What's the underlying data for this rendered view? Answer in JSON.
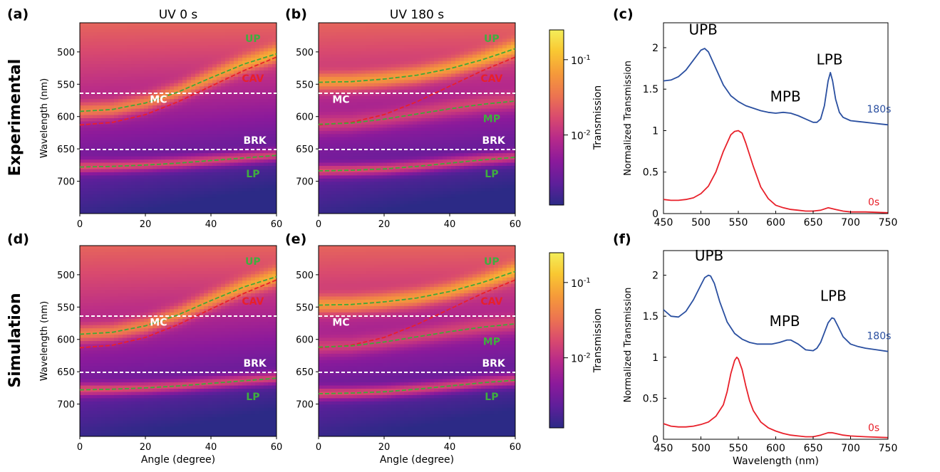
{
  "colors": {
    "ridge_green": "#3fa83a",
    "cavity_red": "#e8202a",
    "level_white": "#ffffff",
    "label_green": "#3fae3f",
    "label_red": "#e8202a",
    "label_white": "#ffffff",
    "line_180s": "#2a4fa0",
    "line_0s": "#e8202a",
    "colormap": [
      "#2c2a86",
      "#5d1f9a",
      "#8b1a9b",
      "#b72a8a",
      "#d94a6e",
      "#ec7351",
      "#f59a3a",
      "#f9c832",
      "#f4ee5a"
    ]
  },
  "row_labels": {
    "top": "Experimental",
    "bottom": "Simulation"
  },
  "column_titles": {
    "a": "UV 0 s",
    "b": "UV 180 s"
  },
  "panel_letters": {
    "a": "(a)",
    "b": "(b)",
    "c": "(c)",
    "d": "(d)",
    "e": "(e)",
    "f": "(f)"
  },
  "colorbar": {
    "label": "Transmission",
    "ticks": [
      "10-1",
      "10-2"
    ],
    "scale": "log"
  },
  "chart_data": [
    {
      "id": "a",
      "type": "heatmap",
      "title": "UV 0 s",
      "xlabel": "",
      "ylabel": "Wavelength (nm)",
      "xlim": [
        0,
        60
      ],
      "ylim": [
        750,
        455
      ],
      "x_ticks": [
        "0",
        "20",
        "40",
        "60"
      ],
      "y_ticks": [
        "500",
        "550",
        "600",
        "650",
        "700"
      ],
      "horizontal_lines": [
        {
          "label": "MC",
          "y": 564
        },
        {
          "label": "BRK",
          "y": 651
        }
      ],
      "curves": [
        {
          "label": "UP",
          "color": "ridge_green",
          "x": [
            0,
            10,
            20,
            30,
            40,
            50,
            60
          ],
          "y": [
            592,
            589,
            579,
            562,
            540,
            519,
            503
          ]
        },
        {
          "label": "CAV",
          "color": "cavity_red",
          "x": [
            0,
            10,
            20,
            30,
            40,
            50,
            60
          ],
          "y": [
            613,
            609,
            597,
            577,
            553,
            529,
            508
          ]
        },
        {
          "label": "LP",
          "color": "ridge_green",
          "x": [
            0,
            10,
            20,
            30,
            40,
            50,
            60
          ],
          "y": [
            678,
            677,
            675,
            672,
            668,
            664,
            660
          ]
        }
      ]
    },
    {
      "id": "b",
      "type": "heatmap",
      "title": "UV 180 s",
      "xlabel": "",
      "ylabel": "",
      "xlim": [
        0,
        60
      ],
      "ylim": [
        750,
        455
      ],
      "x_ticks": [
        "0",
        "20",
        "40",
        "60"
      ],
      "y_ticks": [
        "500",
        "550",
        "600",
        "650",
        "700"
      ],
      "horizontal_lines": [
        {
          "label": "MC",
          "y": 564
        },
        {
          "label": "BRK",
          "y": 651
        }
      ],
      "curves": [
        {
          "label": "UP",
          "color": "ridge_green",
          "x": [
            0,
            10,
            20,
            30,
            40,
            50,
            60
          ],
          "y": [
            547,
            546,
            542,
            536,
            526,
            512,
            495
          ]
        },
        {
          "label": "CAV",
          "color": "cavity_red",
          "x": [
            0,
            10,
            20,
            30,
            40,
            50,
            60
          ],
          "y": [
            613,
            609,
            597,
            577,
            553,
            529,
            508
          ]
        },
        {
          "label": "MP",
          "color": "ridge_green",
          "x": [
            0,
            10,
            20,
            30,
            40,
            50,
            60
          ],
          "y": [
            612,
            610,
            604,
            596,
            588,
            581,
            576
          ]
        },
        {
          "label": "LP",
          "color": "ridge_green",
          "x": [
            0,
            10,
            20,
            30,
            40,
            50,
            60
          ],
          "y": [
            684,
            683,
            681,
            677,
            672,
            667,
            663
          ]
        }
      ]
    },
    {
      "id": "c",
      "type": "line",
      "xlabel": "",
      "ylabel": "Normalized Transmission",
      "xlim": [
        450,
        750
      ],
      "ylim": [
        0,
        2.3
      ],
      "x_ticks": [
        "450",
        "500",
        "550",
        "600",
        "650",
        "700",
        "750"
      ],
      "y_ticks": [
        "0",
        "0.5",
        "1",
        "1.5",
        "2"
      ],
      "series": [
        {
          "name": "180s",
          "color": "line_180s",
          "x": [
            450,
            460,
            470,
            480,
            490,
            500,
            505,
            510,
            520,
            530,
            540,
            550,
            560,
            570,
            580,
            590,
            600,
            610,
            620,
            630,
            640,
            650,
            655,
            660,
            665,
            670,
            673,
            676,
            680,
            685,
            690,
            700,
            710,
            720,
            730,
            740,
            750
          ],
          "y": [
            1.6,
            1.61,
            1.65,
            1.73,
            1.85,
            1.97,
            1.99,
            1.95,
            1.75,
            1.55,
            1.42,
            1.35,
            1.3,
            1.27,
            1.24,
            1.22,
            1.21,
            1.22,
            1.21,
            1.18,
            1.14,
            1.1,
            1.1,
            1.14,
            1.3,
            1.6,
            1.7,
            1.6,
            1.38,
            1.22,
            1.16,
            1.12,
            1.11,
            1.1,
            1.09,
            1.08,
            1.07
          ]
        },
        {
          "name": "0s",
          "color": "line_0s",
          "x": [
            450,
            460,
            470,
            480,
            490,
            500,
            510,
            520,
            530,
            540,
            545,
            550,
            555,
            560,
            570,
            580,
            590,
            600,
            610,
            620,
            630,
            640,
            650,
            660,
            670,
            675,
            680,
            690,
            700,
            720,
            750
          ],
          "y": [
            0.17,
            0.16,
            0.16,
            0.17,
            0.19,
            0.24,
            0.33,
            0.5,
            0.75,
            0.95,
            0.99,
            1.0,
            0.97,
            0.85,
            0.57,
            0.32,
            0.18,
            0.1,
            0.07,
            0.05,
            0.04,
            0.03,
            0.03,
            0.04,
            0.07,
            0.06,
            0.05,
            0.03,
            0.02,
            0.02,
            0.01
          ]
        }
      ],
      "annotations": [
        {
          "text": "UPB",
          "x": 503,
          "y": 2.16
        },
        {
          "text": "MPB",
          "x": 613,
          "y": 1.35
        },
        {
          "text": "LPB",
          "x": 672,
          "y": 1.8
        },
        {
          "text": "180s",
          "x": 738,
          "y": 1.22
        },
        {
          "text": "0s",
          "x": 731,
          "y": 0.1
        }
      ]
    },
    {
      "id": "d",
      "type": "heatmap",
      "xlabel": "Angle (degree)",
      "ylabel": "Wavelength (nm)",
      "xlim": [
        0,
        60
      ],
      "ylim": [
        750,
        455
      ],
      "x_ticks": [
        "0",
        "20",
        "40",
        "60"
      ],
      "y_ticks": [
        "500",
        "550",
        "600",
        "650",
        "700"
      ],
      "horizontal_lines": [
        {
          "label": "MC",
          "y": 564
        },
        {
          "label": "BRK",
          "y": 651
        }
      ],
      "curves": [
        {
          "label": "UP",
          "color": "ridge_green",
          "x": [
            0,
            10,
            20,
            30,
            40,
            50,
            60
          ],
          "y": [
            592,
            589,
            579,
            562,
            540,
            519,
            503
          ]
        },
        {
          "label": "CAV",
          "color": "cavity_red",
          "x": [
            0,
            10,
            20,
            30,
            40,
            50,
            60
          ],
          "y": [
            613,
            609,
            597,
            577,
            553,
            529,
            508
          ]
        },
        {
          "label": "LP",
          "color": "ridge_green",
          "x": [
            0,
            10,
            20,
            30,
            40,
            50,
            60
          ],
          "y": [
            678,
            677,
            675,
            672,
            668,
            664,
            660
          ]
        }
      ]
    },
    {
      "id": "e",
      "type": "heatmap",
      "xlabel": "Angle (degree)",
      "ylabel": "",
      "xlim": [
        0,
        60
      ],
      "ylim": [
        750,
        455
      ],
      "x_ticks": [
        "0",
        "20",
        "40",
        "60"
      ],
      "y_ticks": [
        "500",
        "550",
        "600",
        "650",
        "700"
      ],
      "horizontal_lines": [
        {
          "label": "MC",
          "y": 564
        },
        {
          "label": "BRK",
          "y": 651
        }
      ],
      "curves": [
        {
          "label": "UP",
          "color": "ridge_green",
          "x": [
            0,
            10,
            20,
            30,
            40,
            50,
            60
          ],
          "y": [
            547,
            546,
            542,
            536,
            526,
            512,
            495
          ]
        },
        {
          "label": "CAV",
          "color": "cavity_red",
          "x": [
            0,
            10,
            20,
            30,
            40,
            50,
            60
          ],
          "y": [
            613,
            609,
            597,
            577,
            553,
            529,
            508
          ]
        },
        {
          "label": "MP",
          "color": "ridge_green",
          "x": [
            0,
            10,
            20,
            30,
            40,
            50,
            60
          ],
          "y": [
            612,
            610,
            604,
            596,
            588,
            581,
            576
          ]
        },
        {
          "label": "LP",
          "color": "ridge_green",
          "x": [
            0,
            10,
            20,
            30,
            40,
            50,
            60
          ],
          "y": [
            684,
            683,
            681,
            677,
            672,
            667,
            663
          ]
        }
      ]
    },
    {
      "id": "f",
      "type": "line",
      "xlabel": "Wavelength (nm)",
      "ylabel": "Normalized Transmission",
      "xlim": [
        450,
        750
      ],
      "ylim": [
        0,
        2.3
      ],
      "x_ticks": [
        "450",
        "500",
        "550",
        "600",
        "650",
        "700",
        "750"
      ],
      "y_ticks": [
        "0",
        "0.5",
        "1",
        "1.5",
        "2"
      ],
      "series": [
        {
          "name": "180s",
          "color": "line_180s",
          "x": [
            450,
            460,
            470,
            480,
            490,
            500,
            505,
            510,
            513,
            518,
            525,
            535,
            545,
            555,
            565,
            575,
            585,
            595,
            605,
            615,
            620,
            630,
            640,
            650,
            655,
            660,
            665,
            670,
            675,
            678,
            683,
            690,
            700,
            710,
            720,
            735,
            750
          ],
          "y": [
            1.58,
            1.5,
            1.49,
            1.56,
            1.7,
            1.88,
            1.97,
            2.0,
            1.99,
            1.9,
            1.68,
            1.43,
            1.29,
            1.22,
            1.18,
            1.16,
            1.16,
            1.16,
            1.18,
            1.21,
            1.21,
            1.16,
            1.09,
            1.08,
            1.11,
            1.18,
            1.3,
            1.42,
            1.48,
            1.47,
            1.38,
            1.25,
            1.16,
            1.13,
            1.11,
            1.09,
            1.07
          ]
        },
        {
          "name": "0s",
          "color": "line_0s",
          "x": [
            450,
            460,
            470,
            480,
            490,
            500,
            510,
            520,
            530,
            535,
            540,
            545,
            548,
            550,
            555,
            560,
            565,
            570,
            580,
            590,
            600,
            610,
            620,
            630,
            640,
            650,
            660,
            670,
            675,
            680,
            690,
            700,
            720,
            750
          ],
          "y": [
            0.19,
            0.16,
            0.15,
            0.15,
            0.16,
            0.18,
            0.21,
            0.28,
            0.42,
            0.58,
            0.8,
            0.96,
            1.0,
            0.98,
            0.85,
            0.65,
            0.47,
            0.35,
            0.21,
            0.14,
            0.1,
            0.07,
            0.05,
            0.04,
            0.03,
            0.03,
            0.05,
            0.08,
            0.08,
            0.07,
            0.05,
            0.04,
            0.03,
            0.02
          ]
        }
      ],
      "annotations": [
        {
          "text": "UPB",
          "x": 511,
          "y": 2.18
        },
        {
          "text": "MPB",
          "x": 612,
          "y": 1.38
        },
        {
          "text": "LPB",
          "x": 677,
          "y": 1.69
        },
        {
          "text": "180s",
          "x": 738,
          "y": 1.22
        },
        {
          "text": "0s",
          "x": 731,
          "y": 0.1
        }
      ]
    }
  ]
}
